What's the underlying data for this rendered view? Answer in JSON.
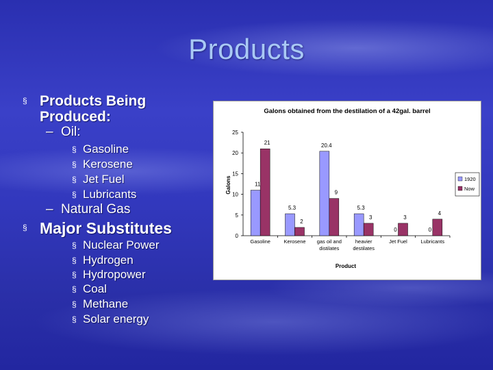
{
  "slide": {
    "title": "Products",
    "section1": "Products Being Produced:",
    "oil_label": "Oil:",
    "oil_items": [
      "Gasoline",
      "Kerosene",
      "Jet Fuel",
      "Lubricants"
    ],
    "natural_gas_label": "Natural Gas",
    "section2": "Major Substitutes",
    "substitutes": [
      "Nuclear Power",
      "Hydrogen",
      "Hydropower",
      "Coal",
      "Methane",
      "Solar energy"
    ]
  },
  "chart_data": {
    "type": "bar",
    "title": "Galons obtained from the destilation of a 42gal. barrel",
    "xlabel": "Product",
    "ylabel": "Galons",
    "ylim": [
      0,
      25
    ],
    "yticks": [
      0,
      5,
      10,
      15,
      20,
      25
    ],
    "categories": [
      [
        "Gasoline"
      ],
      [
        "Kerosene"
      ],
      [
        "gas oil and",
        "distilates"
      ],
      [
        "heavier",
        "destilates"
      ],
      [
        "Jet Fuel"
      ],
      [
        "Lubricants"
      ]
    ],
    "series": [
      {
        "name": "1920",
        "values": [
          11,
          5.3,
          20.4,
          5.3,
          0,
          0
        ],
        "labels": [
          "11",
          "5.3",
          "20.4",
          "5.3",
          "0",
          "0"
        ],
        "color": "#9999ff"
      },
      {
        "name": "Now",
        "values": [
          21,
          2,
          9,
          3,
          3,
          4
        ],
        "labels": [
          "21",
          "2",
          "9",
          "3",
          "3",
          "4"
        ],
        "color": "#993366"
      }
    ],
    "grid": false,
    "legend": "right"
  }
}
